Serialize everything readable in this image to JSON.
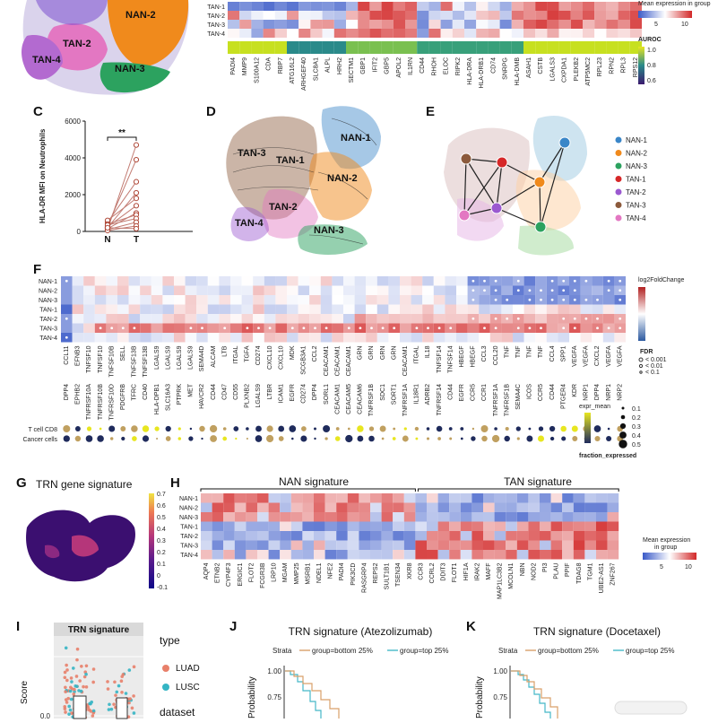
{
  "panelA": {
    "clusters": [
      "NAN-2",
      "TAN-2",
      "TAN-4",
      "NAN-3"
    ]
  },
  "panelB": {
    "rows": [
      "TAN-1",
      "TAN-2",
      "TAN-3",
      "TAN-4"
    ],
    "genes": [
      "PADI4",
      "MMP9",
      "S100A12",
      "CDA",
      "RBP7",
      "ATG16L2",
      "ARHGEF40",
      "SLC8A1",
      "ALPL",
      "HRH2",
      "SECTM1",
      "GBP1",
      "IFIT2",
      "GBP5",
      "APOL2",
      "IL1RN",
      "CD44",
      "RHOH",
      "ELOC",
      "RIPK2",
      "HLA-DRA",
      "HLA-DRB1",
      "CD74",
      "SNRPG",
      "HLA-DMB",
      "ASAH1",
      "CSTB",
      "LGALS3",
      "CXPDA1",
      "PLEKB2",
      "ATP5MC2",
      "RPL23",
      "RPN2",
      "RPL3",
      "RPS12"
    ],
    "legend_title": "Mean expression in group",
    "legend_ticks": [
      "5",
      "10"
    ],
    "auroc_title": "AUROC",
    "auroc_ticks": [
      "1.0",
      "0.8",
      "0.6"
    ]
  },
  "panelC": {
    "label": "C",
    "ylabel": "HLA-DR MFI on Neutrophils",
    "yticks": [
      "0",
      "2000",
      "4000",
      "6000"
    ],
    "xticks": [
      "N",
      "T"
    ],
    "signif": "**"
  },
  "chart_data": {
    "type": "scatter",
    "title": "",
    "ylabel": "HLA-DR MFI on Neutrophils",
    "categories": [
      "N",
      "T"
    ],
    "ylim": [
      0,
      6000
    ],
    "pairs": [
      [
        100,
        4700
      ],
      [
        300,
        3900
      ],
      [
        500,
        2700
      ],
      [
        200,
        2100
      ],
      [
        600,
        1800
      ],
      [
        250,
        1400
      ],
      [
        150,
        1000
      ],
      [
        400,
        900
      ],
      [
        350,
        700
      ],
      [
        100,
        500
      ],
      [
        50,
        300
      ],
      [
        200,
        150
      ]
    ]
  },
  "panelD": {
    "label": "D",
    "clusters": [
      "NAN-1",
      "TAN-3",
      "TAN-1",
      "NAN-2",
      "TAN-2",
      "TAN-4",
      "NAN-3"
    ]
  },
  "panelE": {
    "label": "E",
    "legend": [
      {
        "name": "NAN-1",
        "color": "#3a86c8"
      },
      {
        "name": "NAN-2",
        "color": "#f08a1c"
      },
      {
        "name": "NAN-3",
        "color": "#2ca25f"
      },
      {
        "name": "TAN-1",
        "color": "#d62728"
      },
      {
        "name": "TAN-2",
        "color": "#9b59d0"
      },
      {
        "name": "TAN-3",
        "color": "#8c5a3c"
      },
      {
        "name": "TAN-4",
        "color": "#e377c2"
      }
    ]
  },
  "panelF": {
    "label": "F",
    "rows": [
      "NAN-1",
      "NAN-2",
      "NAN-3",
      "TAN-1",
      "TAN-2",
      "TAN-3",
      "TAN-4"
    ],
    "ligands": [
      "CCL11",
      "EFNB3",
      "TNFSF10",
      "TNFSF10",
      "TNFSF10B",
      "SELL",
      "TNFSF13B",
      "TNFSF13B",
      "LGALS9",
      "LGALS9",
      "LGALS9",
      "LGALS9",
      "SEMA4D",
      "ALCAM",
      "LTB",
      "ITGAL",
      "TGFA",
      "CD274",
      "CXCL10",
      "CXCL10",
      "MDK",
      "SCGB3A1",
      "CCL2",
      "CEACAM1",
      "CEACAM1",
      "CEACAM1",
      "GRN",
      "GRN",
      "GRN",
      "GRN",
      "CEACAM1",
      "ITGAL",
      "IL18",
      "TNFSF14",
      "TNFSF14",
      "HBEGF",
      "HBEGF",
      "CCL3",
      "CCL20",
      "TNF",
      "TNF",
      "TNF",
      "TNF",
      "CCL4",
      "SPP1",
      "VEGFA",
      "VEGFA",
      "CXCL2",
      "VEGFA",
      "VEGFA"
    ],
    "receptors": [
      "DPP4",
      "EPHB2",
      "TNFRSF10A",
      "TNFRSF10B",
      "TNFRSF10D",
      "PDGFRB",
      "TFRC",
      "CD40",
      "HLA-DPB1",
      "SLC16A3",
      "PTPRK",
      "MET",
      "HAVCR2",
      "CD44",
      "CD47",
      "CD55",
      "PLXNB2",
      "LGALS9",
      "LTBR",
      "ICAM1",
      "EGFR",
      "CD274",
      "DPP4",
      "SORL1",
      "CEACAM1",
      "CEACAM5",
      "CEACAM6",
      "TNFRSF1B",
      "SDC1",
      "SORT1",
      "TNFRSF1A",
      "IL18R1",
      "ADRB2",
      "TNFRSF14",
      "CD44",
      "EGFR",
      "CCR5",
      "CCR1",
      "TNFRSF1A",
      "TNFRSF1B",
      "SEMA4C",
      "ICOS",
      "CCR5",
      "CD44",
      "PTGER4",
      "KDR",
      "NRP1",
      "DPP4",
      "NRP1",
      "NRP2"
    ],
    "bottom_rows": [
      "T cell CD8",
      "Cancer cells"
    ],
    "legend_title": "log2FoldChange",
    "fdr_title": "FDR",
    "fdr_items": [
      "< 0.001",
      "< 0.01",
      "< 0.1"
    ],
    "expr_title": "expr_mean",
    "expr_items": [
      "0.1",
      "0.2",
      "0.3",
      "0.4",
      "0.5"
    ],
    "frac_title": "fraction_expressed"
  },
  "panelG": {
    "label": "G",
    "title": "TRN gene signature",
    "ticks": [
      "0.7",
      "0.6",
      "0.5",
      "0.4",
      "0.3",
      "0.2",
      "0.1",
      "0",
      "-0.1"
    ]
  },
  "panelH": {
    "label": "H",
    "left_title": "NAN signature",
    "right_title": "TAN signature",
    "rows": [
      "NAN-1",
      "NAN-2",
      "NAN-3",
      "TAN-1",
      "TAN-2",
      "TAN-3",
      "TAN-4"
    ],
    "genes": [
      "AQP4",
      "ETNB2",
      "CYP4F3",
      "ERGIC1",
      "FLOT2",
      "FCGR3B",
      "LRP10",
      "MGAM",
      "MMP25",
      "MSRB1",
      "NDEL1",
      "NFE2",
      "PADI4",
      "PIK3CD",
      "RASGRP4",
      "REPS2",
      "SULT1B1",
      "TSEN34",
      "XKR8",
      "CCR3",
      "CCRL2",
      "DDIT3",
      "FLOT1",
      "HIF1A",
      "IRAK2",
      "MAFF",
      "MAP1LC3B2",
      "MCOLN1",
      "NBN",
      "NOD2",
      "PI3",
      "PLAU",
      "PPIF",
      "TDAG8",
      "TGM1",
      "UBE2-AS1",
      "ZNF267"
    ],
    "legend_title": "Mean expression in group",
    "legend_ticks": [
      "5",
      "10"
    ]
  },
  "panelI": {
    "label": "I",
    "title": "TRN signature",
    "ylabel": "Score",
    "ytick": "0.0",
    "legend_type": "type",
    "types": [
      {
        "name": "LUAD",
        "color": "#e8806a"
      },
      {
        "name": "LUSC",
        "color": "#35b5c4"
      }
    ],
    "dataset_label": "dataset"
  },
  "panelJ": {
    "label": "J",
    "title": "TRN signature (Atezolizumab)",
    "strata": "Strata",
    "groups": [
      {
        "name": "group=bottom 25%",
        "color": "#d9a06a"
      },
      {
        "name": "group=top 25%",
        "color": "#45b8c8"
      }
    ],
    "yticks": [
      "1.00",
      "0.75"
    ],
    "ylabel": "Probability"
  },
  "panelK": {
    "label": "K",
    "title": "TRN signature (Docetaxel)",
    "strata": "Strata",
    "groups": [
      {
        "name": "group=bottom 25%",
        "color": "#d9a06a"
      },
      {
        "name": "group=top 25%",
        "color": "#45b8c8"
      }
    ],
    "yticks": [
      "1.00",
      "0.75"
    ],
    "ylabel": "Probability"
  }
}
